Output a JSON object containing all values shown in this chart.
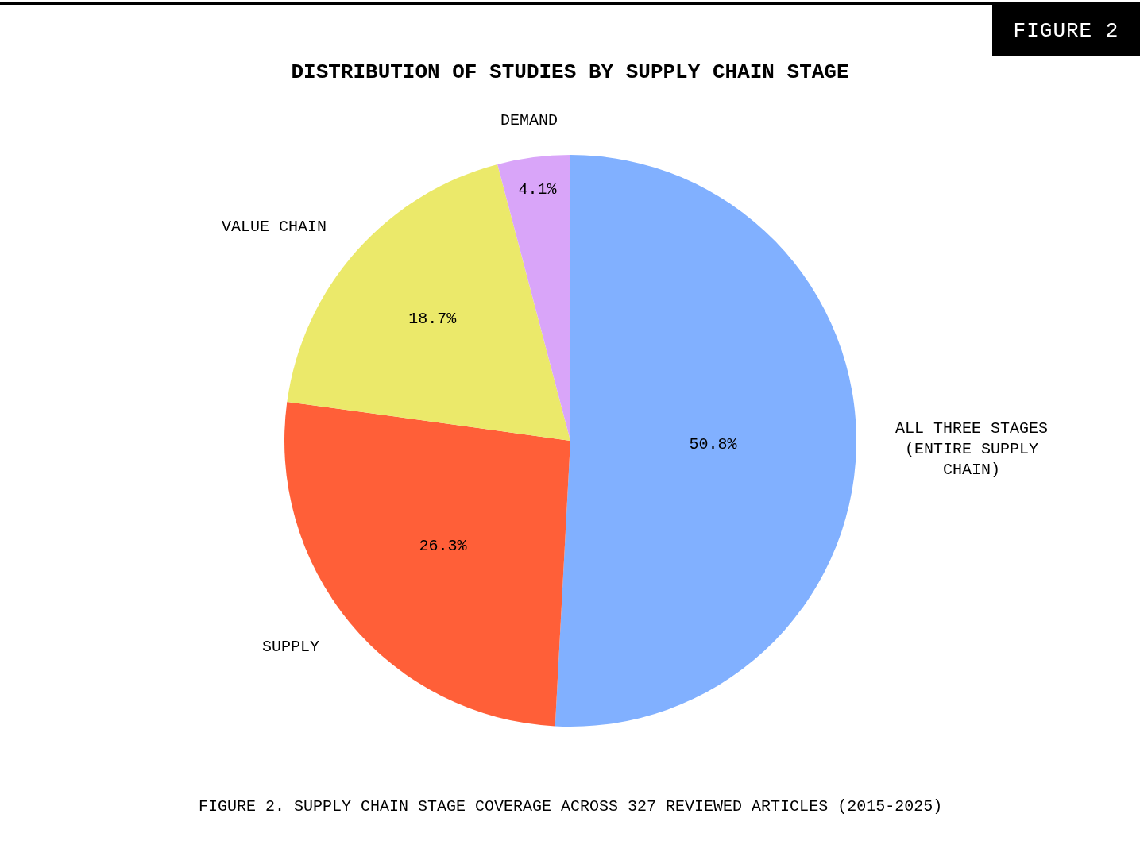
{
  "chart_data": {
    "type": "pie",
    "title": "DISTRIBUTION OF STUDIES BY SUPPLY CHAIN STAGE",
    "categories": [
      "ALL THREE STAGES (ENTIRE SUPPLY CHAIN)",
      "SUPPLY",
      "VALUE CHAIN",
      "DEMAND"
    ],
    "values": [
      50.8,
      26.3,
      18.7,
      4.1
    ],
    "value_labels": [
      "50.8%",
      "26.3%",
      "18.7%",
      "4.1%"
    ],
    "colors": [
      "#81b0ff",
      "#ff5f38",
      "#ebe96a",
      "#d9a5f9"
    ],
    "annotations": [
      "FIGURE 2",
      "FIGURE 2. SUPPLY CHAIN STAGE COVERAGE ACROSS 327 REVIEWED ARTICLES (2015-2025)"
    ]
  }
}
